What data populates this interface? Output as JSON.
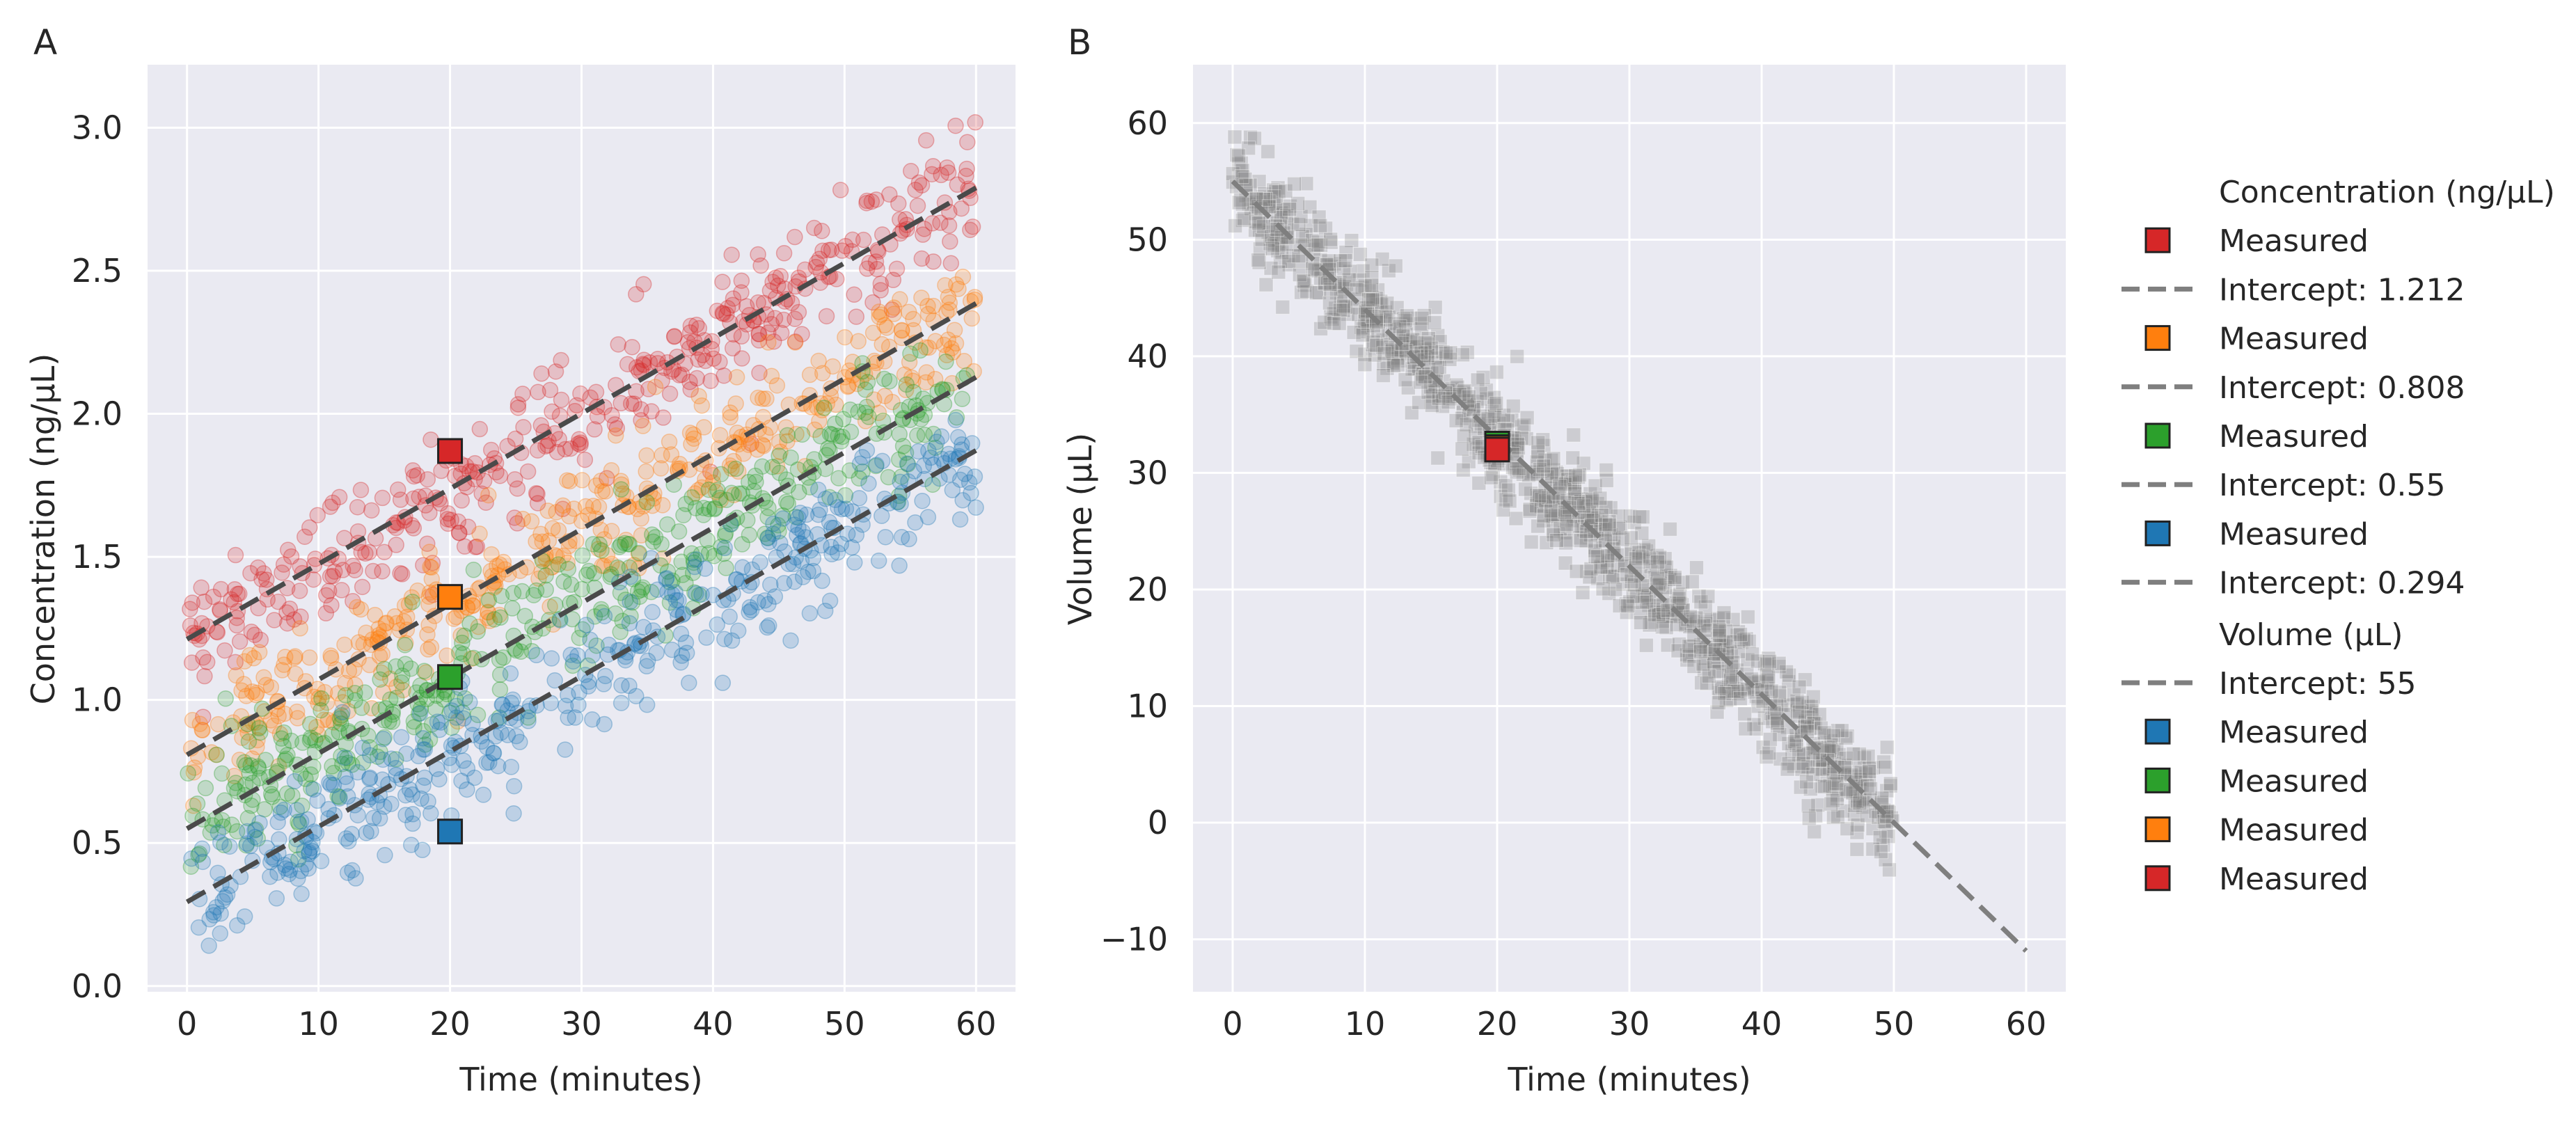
{
  "chart_data": [
    {
      "panel": "A",
      "type": "scatter",
      "title": "",
      "xlabel": "Time (minutes)",
      "ylabel": "Concentration (ng/μL)",
      "xlim": [
        -3,
        63
      ],
      "ylim": [
        -0.02,
        3.22
      ],
      "xticks": [
        0,
        10,
        20,
        30,
        40,
        50,
        60
      ],
      "yticks": [
        0.0,
        0.5,
        1.0,
        1.5,
        2.0,
        2.5,
        3.0
      ],
      "xtick_labels": [
        "0",
        "10",
        "20",
        "30",
        "40",
        "50",
        "60"
      ],
      "ytick_labels": [
        "0.0",
        "0.5",
        "1.0",
        "1.5",
        "2.0",
        "2.5",
        "3.0"
      ],
      "grid": true,
      "series": [
        {
          "name": "Concentration (ng/μL)",
          "color": "#d62728",
          "intercept": 1.212,
          "slope": 0.0263,
          "fit_line": "Intercept: 1.212",
          "measured": {
            "x": 20,
            "y": 1.87
          }
        },
        {
          "name": "Concentration (ng/μL)",
          "color": "#ff7f0e",
          "intercept": 0.808,
          "slope": 0.0263,
          "fit_line": "Intercept: 0.808",
          "measured": {
            "x": 20,
            "y": 1.36
          }
        },
        {
          "name": "Concentration (ng/μL)",
          "color": "#2ca02c",
          "intercept": 0.55,
          "slope": 0.0263,
          "fit_line": "Intercept: 0.55",
          "measured": {
            "x": 20,
            "y": 1.08
          }
        },
        {
          "name": "Concentration (ng/μL)",
          "color": "#1f77b4",
          "intercept": 0.294,
          "slope": 0.0263,
          "fit_line": "Intercept: 0.294",
          "measured": {
            "x": 20,
            "y": 0.54
          }
        }
      ],
      "scatter_range_x": [
        0,
        60
      ]
    },
    {
      "panel": "B",
      "type": "scatter",
      "title": "",
      "xlabel": "Time (minutes)",
      "ylabel": "Volume (μL)",
      "xlim": [
        -3,
        63
      ],
      "ylim": [
        -14.5,
        65
      ],
      "xticks": [
        0,
        10,
        20,
        30,
        40,
        50,
        60
      ],
      "yticks": [
        -10,
        0,
        10,
        20,
        30,
        40,
        50,
        60
      ],
      "xtick_labels": [
        "0",
        "10",
        "20",
        "30",
        "40",
        "50",
        "60"
      ],
      "ytick_labels": [
        "−10",
        "0",
        "10",
        "20",
        "30",
        "40",
        "50",
        "60"
      ],
      "grid": true,
      "series": [
        {
          "name": "Volume (μL)",
          "color": "#7f7f7f",
          "intercept": 55,
          "slope": -1.1,
          "fit_line": "Intercept: 55",
          "fit_x_range": [
            0,
            60
          ],
          "scatter_range_x": [
            0,
            50
          ]
        }
      ],
      "measured": [
        {
          "color": "#1f77b4",
          "x": 20,
          "y": 32.5
        },
        {
          "color": "#2ca02c",
          "x": 20,
          "y": 32.5
        },
        {
          "color": "#ff7f0e",
          "x": 20,
          "y": 32.2
        },
        {
          "color": "#d62728",
          "x": 20,
          "y": 32.0
        }
      ]
    }
  ],
  "panel_letters": [
    "A",
    "B"
  ],
  "legend": {
    "position": "right",
    "sections": [
      {
        "title": "Concentration (ng/μL)",
        "entries": [
          {
            "kind": "square",
            "color": "#d62728",
            "label": "Measured"
          },
          {
            "kind": "dash",
            "color": "#7f7f7f",
            "label": "Intercept: 1.212"
          },
          {
            "kind": "square",
            "color": "#ff7f0e",
            "label": "Measured"
          },
          {
            "kind": "dash",
            "color": "#7f7f7f",
            "label": "Intercept: 0.808"
          },
          {
            "kind": "square",
            "color": "#2ca02c",
            "label": "Measured"
          },
          {
            "kind": "dash",
            "color": "#7f7f7f",
            "label": "Intercept: 0.55"
          },
          {
            "kind": "square",
            "color": "#1f77b4",
            "label": "Measured"
          },
          {
            "kind": "dash",
            "color": "#7f7f7f",
            "label": "Intercept: 0.294"
          }
        ]
      },
      {
        "title": "Volume (μL)",
        "entries": [
          {
            "kind": "dash",
            "color": "#7f7f7f",
            "label": "Intercept: 55"
          },
          {
            "kind": "square",
            "color": "#1f77b4",
            "label": "Measured"
          },
          {
            "kind": "square",
            "color": "#2ca02c",
            "label": "Measured"
          },
          {
            "kind": "square",
            "color": "#ff7f0e",
            "label": "Measured"
          },
          {
            "kind": "square",
            "color": "#d62728",
            "label": "Measured"
          }
        ]
      }
    ]
  },
  "colors": {
    "axes_background": "#eaeaf2",
    "grid": "#ffffff",
    "fit_line_dark": "#4a4a4a",
    "legend_dash": "#7f7f7f",
    "square_edge": "#222222"
  }
}
